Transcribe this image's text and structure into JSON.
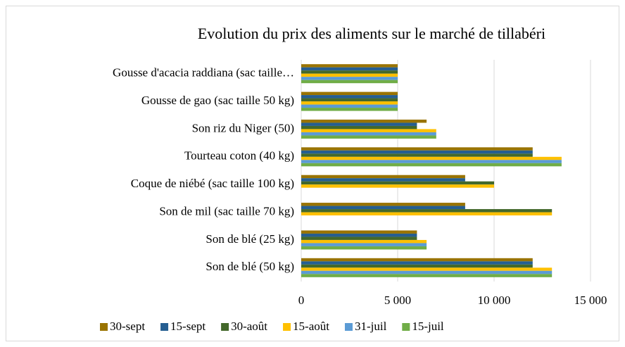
{
  "chart_data": {
    "type": "hbar",
    "title": "Evolution du prix des aliments sur le marché de tillabéri",
    "categories": [
      "Gousse d'acacia raddiana  (sac taille…",
      "Gousse de gao (sac taille 50 kg)",
      "Son riz du Niger (50)",
      "Tourteau coton  (40 kg)",
      "Coque de niébé (sac taille 100 kg)",
      "Son de mil (sac taille 70 kg)",
      "Son de blé (25 kg)",
      "Son de blé (50 kg)"
    ],
    "series": [
      {
        "name": "30-sept",
        "color": "#997300",
        "values": [
          5000,
          5000,
          6500,
          12000,
          8500,
          8500,
          6000,
          12000
        ]
      },
      {
        "name": "15-sept",
        "color": "#255e91",
        "values": [
          5000,
          5000,
          6000,
          12000,
          8500,
          8500,
          6000,
          12000
        ]
      },
      {
        "name": "30-août",
        "color": "#43682b",
        "values": [
          5000,
          5000,
          6000,
          12000,
          10000,
          13000,
          6000,
          12000
        ]
      },
      {
        "name": "15-août",
        "color": "#ffc000",
        "values": [
          5000,
          5000,
          7000,
          13500,
          10000,
          13000,
          6500,
          13000
        ]
      },
      {
        "name": "31-juil",
        "color": "#5b9bd5",
        "values": [
          5000,
          5000,
          7000,
          13500,
          null,
          null,
          6500,
          13000
        ]
      },
      {
        "name": "15-juil",
        "color": "#70ad47",
        "values": [
          5000,
          5000,
          7000,
          13500,
          null,
          null,
          6500,
          13000
        ]
      }
    ],
    "xlim": [
      0,
      15000
    ],
    "xticks": [
      0,
      {
        "value": 5000,
        "label": "5 000"
      },
      {
        "value": 10000,
        "label": "10 000"
      },
      {
        "value": 15000,
        "label": "15 000"
      }
    ],
    "grid": true,
    "legend": "bottom"
  }
}
